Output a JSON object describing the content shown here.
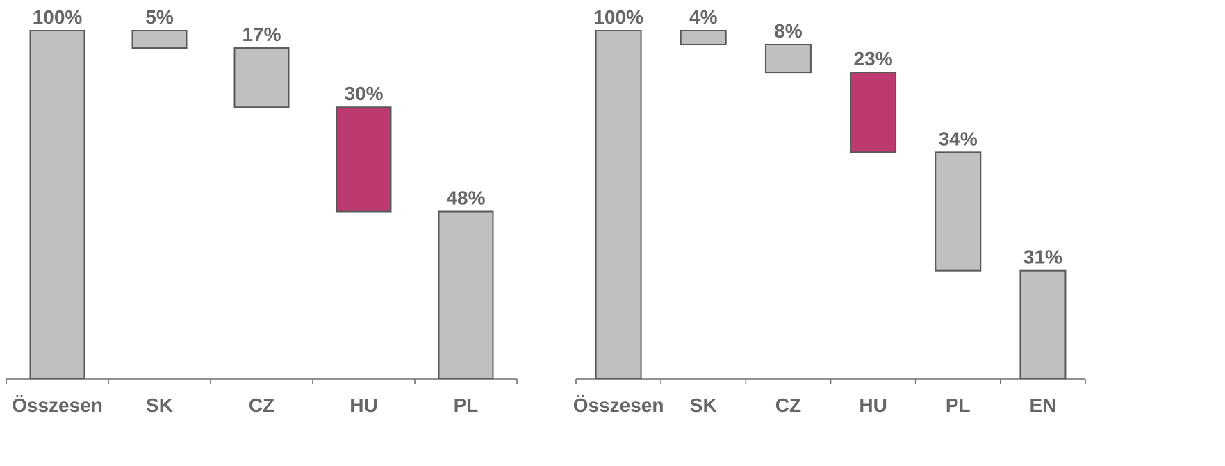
{
  "chart_data": [
    {
      "type": "bar",
      "subtype": "waterfall",
      "categories": [
        "Összesen",
        "SK",
        "CZ",
        "HU",
        "PL"
      ],
      "values": [
        100,
        5,
        17,
        30,
        48
      ],
      "value_labels": [
        "100%",
        "5%",
        "17%",
        "30%",
        "48%"
      ],
      "highlight_category": "HU",
      "ylim": [
        0,
        100
      ],
      "grid": false,
      "legend": "none"
    },
    {
      "type": "bar",
      "subtype": "waterfall",
      "categories": [
        "Összesen",
        "SK",
        "CZ",
        "HU",
        "PL",
        "EN"
      ],
      "values": [
        100,
        4,
        8,
        23,
        34,
        31
      ],
      "value_labels": [
        "100%",
        "4%",
        "8%",
        "23%",
        "34%",
        "31%"
      ],
      "highlight_category": "HU",
      "ylim": [
        0,
        100
      ],
      "grid": false,
      "legend": "none"
    }
  ],
  "colors": {
    "bar_fill": "#c0c0c0",
    "bar_stroke": "#595959",
    "highlight_fill": "#bc3a70",
    "text": "#666666",
    "axis": "#6f6f6f",
    "background": "#ffffff"
  }
}
